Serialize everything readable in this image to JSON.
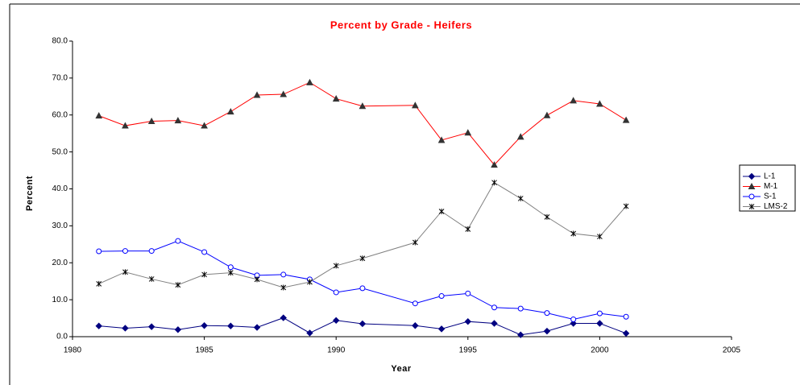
{
  "chart_data": {
    "type": "line",
    "title": "Percent by Grade - Heifers",
    "x_label": "Year",
    "y_label": "Percent",
    "x": [
      1981,
      1982,
      1983,
      1984,
      1985,
      1986,
      1987,
      1988,
      1989,
      1990,
      1991,
      1993,
      1994,
      1995,
      1996,
      1997,
      1998,
      1999,
      2000,
      2001
    ],
    "series": [
      {
        "name": "L-1",
        "color": "#000080",
        "marker": "diamond",
        "marker_color": "#000080",
        "values": [
          2.9,
          2.3,
          2.7,
          1.9,
          3.0,
          2.9,
          2.5,
          5.1,
          1.0,
          4.4,
          3.5,
          3.0,
          2.1,
          4.1,
          3.6,
          0.5,
          1.5,
          3.6,
          3.6,
          0.9
        ]
      },
      {
        "name": "M-1",
        "color": "#ff0000",
        "marker": "triangle",
        "marker_color": "#333333",
        "values": [
          59.8,
          57.1,
          58.3,
          58.5,
          57.1,
          60.9,
          65.4,
          65.6,
          68.8,
          64.4,
          62.4,
          62.6,
          53.2,
          55.2,
          46.5,
          54.1,
          59.9,
          63.9,
          63.0,
          58.6
        ]
      },
      {
        "name": "S-1",
        "color": "#0000ff",
        "marker": "circle",
        "marker_color": "#0000ff",
        "values": [
          23.1,
          23.2,
          23.2,
          25.9,
          22.9,
          18.8,
          16.6,
          16.8,
          15.5,
          12.0,
          13.1,
          9.0,
          11.0,
          11.7,
          7.9,
          7.6,
          6.4,
          4.7,
          6.3,
          5.4
        ]
      },
      {
        "name": "LMS-2",
        "color": "#808080",
        "marker": "asterisk",
        "marker_color": "#000000",
        "values": [
          14.3,
          17.5,
          15.6,
          14.0,
          16.8,
          17.3,
          15.5,
          13.3,
          14.8,
          19.2,
          21.2,
          25.5,
          33.9,
          29.1,
          41.7,
          37.4,
          32.4,
          27.9,
          27.1,
          35.3
        ]
      }
    ],
    "xlim": [
      1980,
      2005
    ],
    "xticks": [
      1980,
      1985,
      1990,
      1995,
      2000,
      2005
    ],
    "ylim": [
      0,
      80
    ],
    "yticks": [
      {
        "value": 0,
        "label": "0.0"
      },
      {
        "value": 10,
        "label": "10.0"
      },
      {
        "value": 20,
        "label": "20.0"
      },
      {
        "value": 30,
        "label": "30.0"
      },
      {
        "value": 40,
        "label": "40.0"
      },
      {
        "value": 50,
        "label": "50.0"
      },
      {
        "value": 60,
        "label": "60.0"
      },
      {
        "value": 70,
        "label": "70.0"
      },
      {
        "value": 80,
        "label": "80.0"
      }
    ],
    "grid": false,
    "legend_position": "right"
  }
}
